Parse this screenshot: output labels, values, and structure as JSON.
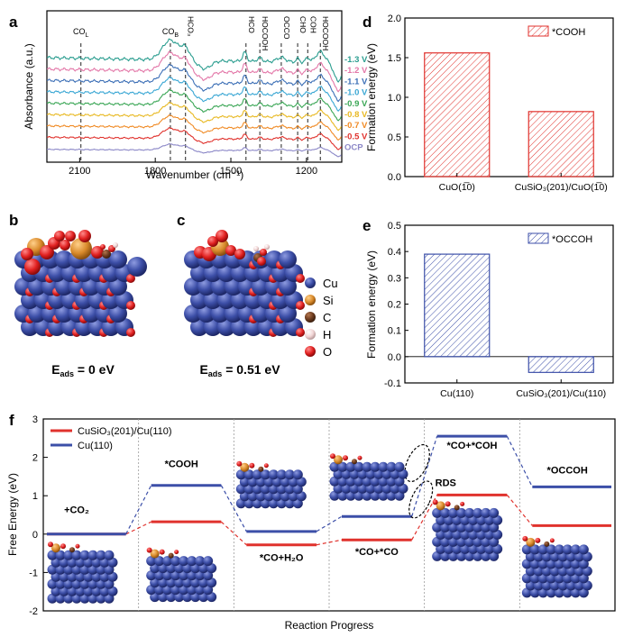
{
  "panels": {
    "a": {
      "letter": "a",
      "xlabel": "Wavenumber (cm⁻¹)",
      "ylabel": "Absorbance (a.u.)",
      "xticks": [
        "2100",
        "1800",
        "1500",
        "1200"
      ],
      "xtick_values": [
        2100,
        1800,
        1500,
        1200
      ],
      "xlim": [
        2230,
        1060
      ],
      "vlines": [
        {
          "x": 2095,
          "label": "CO",
          "sub": "L"
        },
        {
          "x": 1740,
          "label": "CO",
          "sub": "B"
        },
        {
          "x": 1680,
          "label": "HCO₃"
        },
        {
          "x": 1440,
          "label": "HCO"
        },
        {
          "x": 1385,
          "label": "HOCOOH"
        },
        {
          "x": 1300,
          "label": "OCCO"
        },
        {
          "x": 1235,
          "label": "CHO"
        },
        {
          "x": 1195,
          "label": "COH"
        },
        {
          "x": 1145,
          "label": "HOCOOH"
        }
      ],
      "spectra": [
        {
          "label": "-1.3 V",
          "color": "#2a9d8f"
        },
        {
          "label": "-1.2 V",
          "color": "#e377a8"
        },
        {
          "label": "-1.1 V",
          "color": "#3c6fb6"
        },
        {
          "label": "-1.0 V",
          "color": "#3aa7d4"
        },
        {
          "label": "-0.9 V",
          "color": "#3aa655"
        },
        {
          "label": "-0.8 V",
          "color": "#e8b923"
        },
        {
          "label": "-0.7 V",
          "color": "#f08a24"
        },
        {
          "label": "-0.5 V",
          "color": "#e0322d"
        },
        {
          "label": "OCP",
          "color": "#8b87c7"
        }
      ]
    },
    "b": {
      "letter": "b",
      "eads_label": "E",
      "eads_sub": "ads",
      "eads_value": " = 0 eV"
    },
    "c": {
      "letter": "c",
      "eads_label": "E",
      "eads_sub": "ads",
      "eads_value": " = 0.51 eV"
    },
    "legend_atoms": [
      {
        "symbol": "Cu",
        "color": "#3d4fa8"
      },
      {
        "symbol": "Si",
        "color": "#d98a2b"
      },
      {
        "symbol": "C",
        "color": "#6b3a1e"
      },
      {
        "symbol": "H",
        "color": "#f2d6d6"
      },
      {
        "symbol": "O",
        "color": "#e02020"
      }
    ]
  },
  "chart_data": [
    {
      "panel": "d",
      "letter": "d",
      "type": "bar",
      "categories": [
        "CuO(1̅1̅0)",
        "CuSiO₃(201)/CuO(1̅1̅0)"
      ],
      "category_labels": [
        "CuO(1̅0)",
        "CuSiO₃(201)/CuO(1̅0)"
      ],
      "values": [
        1.56,
        0.82
      ],
      "legend": "*COOH",
      "ylabel": "Formation energy (eV)",
      "ylim": [
        0.0,
        2.0
      ],
      "yticks": [
        "0.0",
        "0.5",
        "1.0",
        "1.5",
        "2.0"
      ],
      "ytick_values": [
        0.0,
        0.5,
        1.0,
        1.5,
        2.0
      ],
      "color": "#e0322d",
      "legend_position": "top-right"
    },
    {
      "panel": "e",
      "letter": "e",
      "type": "bar",
      "categories": [
        "Cu(110)",
        "CuSiO₃(201)/Cu(110)"
      ],
      "values": [
        0.39,
        -0.06
      ],
      "legend": "*OCCOH",
      "ylabel": "Formation energy (eV)",
      "ylim": [
        -0.1,
        0.5
      ],
      "yticks": [
        "-0.1",
        "0.0",
        "0.1",
        "0.2",
        "0.3",
        "0.4",
        "0.5"
      ],
      "ytick_values": [
        -0.1,
        0.0,
        0.1,
        0.2,
        0.3,
        0.4,
        0.5
      ],
      "color": "#3c4fa8",
      "legend_position": "top-right"
    },
    {
      "panel": "f",
      "letter": "f",
      "type": "line",
      "xlabel": "Reaction Progress",
      "ylabel": "Free Energy (eV)",
      "ylim": [
        -2,
        3
      ],
      "yticks": [
        "-2",
        "-1",
        "0",
        "1",
        "2",
        "3"
      ],
      "ytick_values": [
        -2,
        -1,
        0,
        1,
        2,
        3
      ],
      "steps": 6,
      "step_labels": [
        "+CO₂",
        "*COOH",
        "*CO+H₂O",
        "*CO+*CO",
        "*CO+*COH",
        "*OCCOH"
      ],
      "series": [
        {
          "name": "CuSiO₃(201)/Cu(110)",
          "color": "#e0322d",
          "values": [
            0.0,
            0.32,
            -0.28,
            -0.15,
            1.02,
            0.22
          ]
        },
        {
          "name": "Cu(110)",
          "color": "#3c4fa8",
          "values": [
            0.0,
            1.27,
            0.07,
            0.46,
            2.55,
            1.23
          ]
        }
      ],
      "annotation": "RDS",
      "legend_position": "top-left"
    }
  ]
}
